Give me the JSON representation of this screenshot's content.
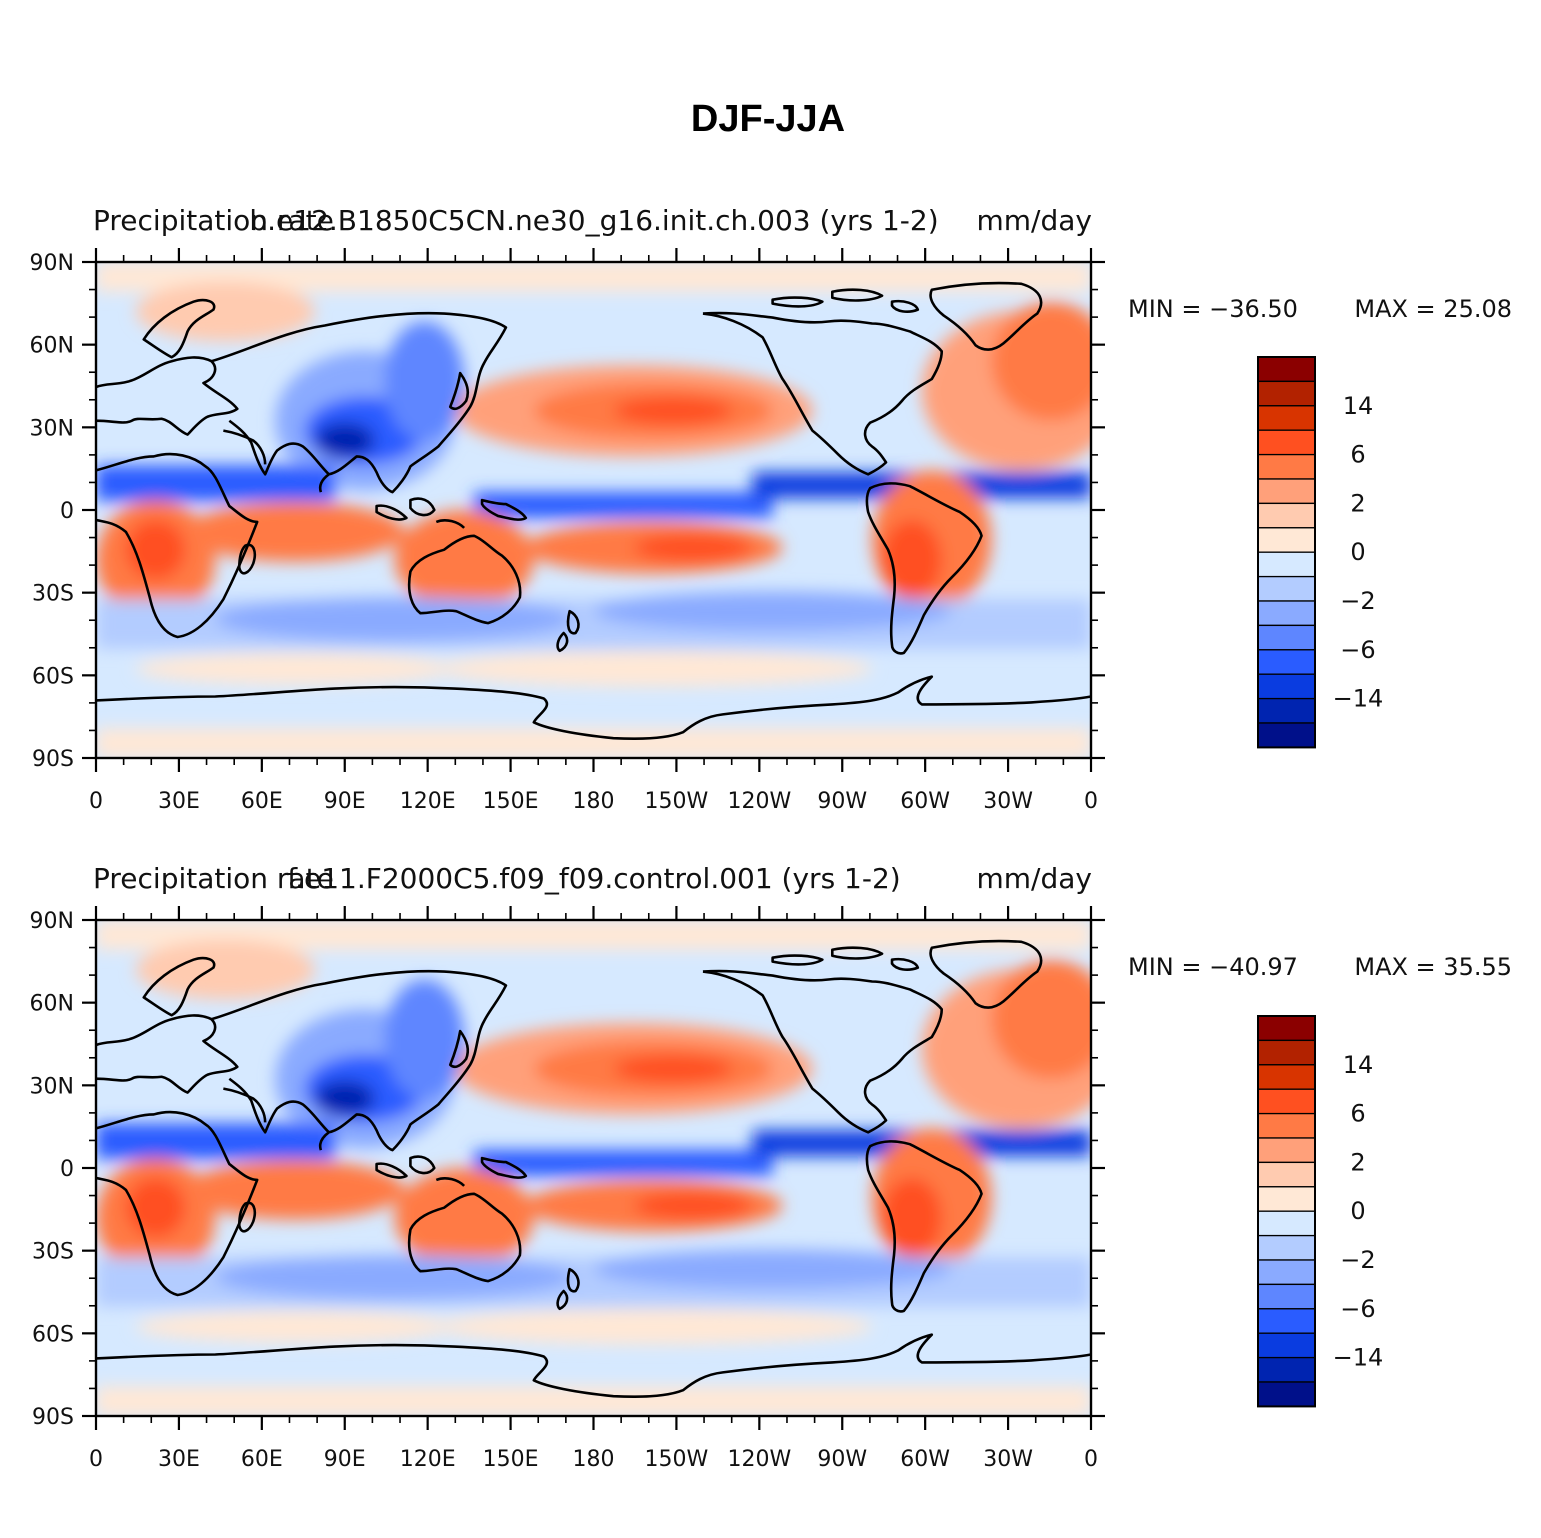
{
  "figure": {
    "title": "DJF-JJA"
  },
  "maps": [
    {
      "left_label": "Precipitation rate",
      "center_label": "b.e12.B1850C5CN.ne30_g16.init.ch.003 (yrs 1-2)",
      "right_label": "mm/day",
      "min_text": "MIN = −36.50",
      "max_text": "MAX =   25.08"
    },
    {
      "left_label": "Precipitation rate",
      "center_label": "f.e11.F2000C5.f09_f09.control.001 (yrs 1-2)",
      "right_label": "mm/day",
      "min_text": "MIN = −40.97",
      "max_text": "MAX =   35.55"
    }
  ],
  "axes": {
    "lat_ticks": [
      "90N",
      "60N",
      "30N",
      "0",
      "30S",
      "60S",
      "90S"
    ],
    "lon_ticks": [
      "0",
      "30E",
      "60E",
      "90E",
      "120E",
      "150E",
      "180",
      "150W",
      "120W",
      "90W",
      "60W",
      "30W",
      "0"
    ]
  },
  "colorbar": {
    "labels": [
      "14",
      "6",
      "2",
      "0",
      "−2",
      "−6",
      "−14"
    ],
    "colors": [
      "#8b0000",
      "#b22200",
      "#d83400",
      "#ff5020",
      "#ff7a45",
      "#ffa07a",
      "#ffcbb0",
      "#ffe8d6",
      "#d6e9ff",
      "#b3ccff",
      "#8aaaff",
      "#5e86ff",
      "#2a5cff",
      "#0a3ce0",
      "#0024b0",
      "#00108a"
    ]
  },
  "chart_data": {
    "type": "heatmap",
    "title": "DJF-JJA",
    "units": "mm/day",
    "xlim": [
      0,
      360
    ],
    "ylim": [
      -90,
      90
    ],
    "panels": [
      {
        "name": "b.e12.B1850C5CN.ne30_g16.init.ch.003 (yrs 1-2)",
        "min": -36.5,
        "max": 25.08
      },
      {
        "name": "f.e11.F2000C5.f09_f09.control.001 (yrs 1-2)",
        "min": -40.97,
        "max": 35.55
      }
    ]
  }
}
